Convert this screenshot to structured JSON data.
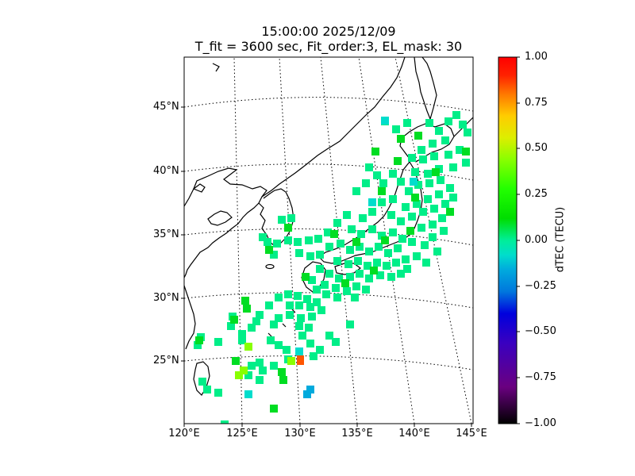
{
  "title_line1": "15:00:00 2025/12/09",
  "title_line2": "T_fit = 3600 sec, Fit_order:3, EL_mask: 30",
  "lat_ticks": [
    "45°N",
    "40°N",
    "35°N",
    "30°N",
    "25°N"
  ],
  "lon_ticks": [
    "120°E",
    "125°E",
    "130°E",
    "135°E",
    "140°E",
    "145°E"
  ],
  "colorbar": {
    "label": "dTEC (TECU)",
    "ticks": [
      "1.00",
      "0.75",
      "0.50",
      "0.25",
      "0.00",
      "−0.25",
      "−0.50",
      "−0.75",
      "−1.00"
    ],
    "vmin": -1.0,
    "vmax": 1.0,
    "colormap": "nipy_spectral-like (black-purple-blue-cyan-green-yellow-orange-red)"
  },
  "map": {
    "lon_range": [
      120,
      145
    ],
    "lat_range": [
      20,
      49
    ],
    "grid": "dotted graticule every 5°",
    "coastline_color": "#000000"
  }
}
